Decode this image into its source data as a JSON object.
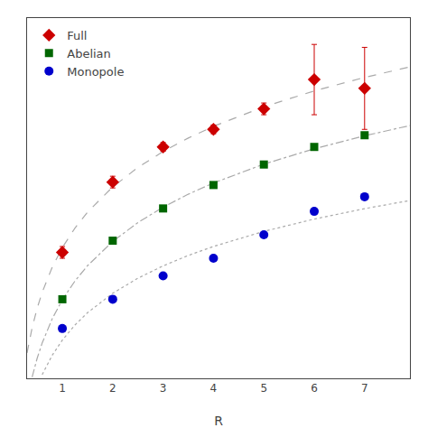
{
  "chart_data": {
    "type": "scatter",
    "xlabel": "R",
    "xlim": [
      0.3,
      7.9
    ],
    "xticks": [
      1,
      2,
      3,
      4,
      5,
      6,
      7
    ],
    "ylim": [
      -0.05,
      1.18
    ],
    "yticks": [],
    "tick_labels": "x",
    "grid": false,
    "legend": "upper left",
    "series": [
      {
        "type": "line",
        "color": "#aaaaaa",
        "line_style": "dash",
        "x": [
          0.3,
          0.4,
          0.5,
          0.6,
          0.8,
          1,
          1.25,
          1.5,
          2,
          2.5,
          3,
          3.5,
          4,
          5,
          6,
          7,
          7.9
        ],
        "values": [
          0.037,
          0.1229,
          0.1895,
          0.2439,
          0.3298,
          0.3964,
          0.463,
          0.5175,
          0.6034,
          0.67,
          0.7244,
          0.7704,
          0.8103,
          0.8769,
          0.9313,
          0.9773,
          1.0134
        ]
      },
      {
        "type": "line",
        "color": "#aaaaaa",
        "line_style": "dashdot",
        "x": [
          0.4,
          0.5,
          0.6,
          0.8,
          1,
          1.25,
          1.5,
          2,
          2.5,
          3,
          3.5,
          4,
          5,
          6,
          7,
          7.9
        ],
        "values": [
          -0.0458,
          0.0185,
          0.0709,
          0.1538,
          0.218,
          0.2822,
          0.3347,
          0.4175,
          0.4818,
          0.5342,
          0.5786,
          0.617,
          0.6813,
          0.7338,
          0.7781,
          0.813
        ]
      },
      {
        "type": "line",
        "color": "#aaaaaa",
        "line_style": "dot",
        "x": [
          0.6,
          0.8,
          1,
          1.25,
          1.5,
          2,
          2.5,
          3,
          3.5,
          4,
          5,
          6,
          7,
          7.9
        ],
        "values": [
          -0.0373,
          0.0291,
          0.0806,
          0.132,
          0.1741,
          0.2404,
          0.2919,
          0.3339,
          0.3695,
          0.4003,
          0.4517,
          0.4938,
          0.5293,
          0.5572
        ]
      },
      {
        "type": "scatter",
        "name": "Full",
        "color": "#cc0000",
        "marker": "diamond",
        "x": [
          1,
          2,
          3,
          4,
          5,
          6,
          7
        ],
        "values": [
          0.38,
          0.62,
          0.74,
          0.8,
          0.87,
          0.97,
          0.94
        ],
        "error": [
          0.02,
          0.02,
          0.015,
          0.015,
          0.02,
          0.12,
          0.14
        ]
      },
      {
        "type": "scatter",
        "name": "Abelian",
        "color": "#006600",
        "marker": "square",
        "x": [
          1,
          2,
          3,
          4,
          5,
          6,
          7
        ],
        "values": [
          0.22,
          0.42,
          0.53,
          0.61,
          0.68,
          0.74,
          0.78
        ],
        "error": [
          0.005,
          0.005,
          0.005,
          0.005,
          0.005,
          0.01,
          0.01
        ]
      },
      {
        "type": "scatter",
        "name": "Monopole",
        "color": "#0000cc",
        "marker": "circle",
        "x": [
          1,
          2,
          3,
          4,
          5,
          6,
          7
        ],
        "values": [
          0.12,
          0.22,
          0.3,
          0.36,
          0.44,
          0.52,
          0.57
        ],
        "error": [
          0.003,
          0.003,
          0.003,
          0.003,
          0.003,
          0.003,
          0.003
        ]
      }
    ]
  }
}
